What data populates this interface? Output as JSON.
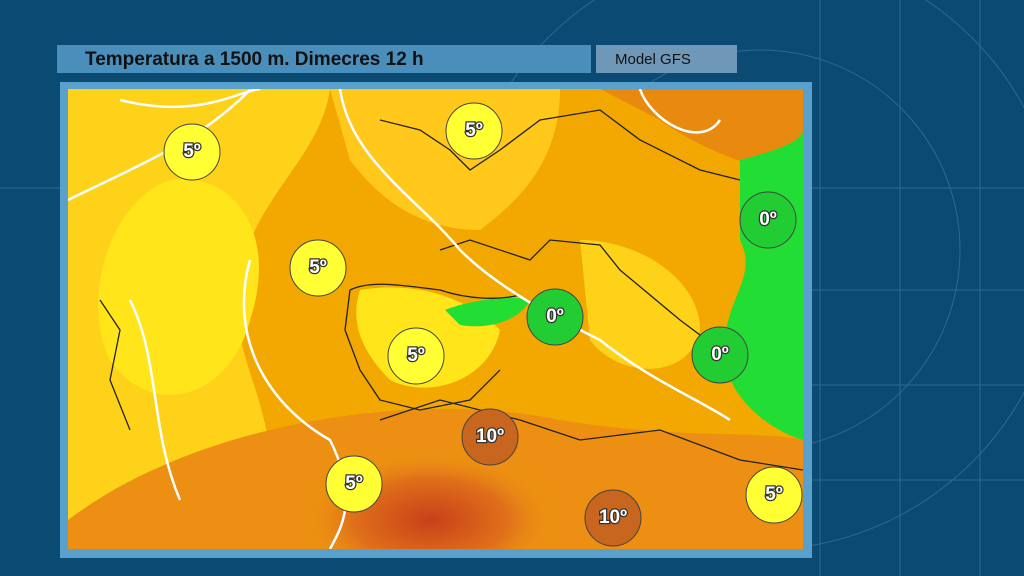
{
  "header": {
    "title": "Temperatura a 1500 m.  Dimecres 12 h",
    "model": "Model GFS"
  },
  "map": {
    "labels": [
      {
        "text": "5º",
        "color": "#ffff33"
      },
      {
        "text": "5º",
        "color": "#ffff33"
      },
      {
        "text": "0º",
        "color": "#22cc33"
      },
      {
        "text": "5º",
        "color": "#ffff33"
      },
      {
        "text": "0º",
        "color": "#22cc33"
      },
      {
        "text": "5º",
        "color": "#ffff33"
      },
      {
        "text": "0º",
        "color": "#22cc33"
      },
      {
        "text": "10º",
        "color": "#c8651e"
      },
      {
        "text": "5º",
        "color": "#ffff33"
      },
      {
        "text": "10º",
        "color": "#c8651e"
      },
      {
        "text": "5º",
        "color": "#ffff33"
      }
    ]
  }
}
